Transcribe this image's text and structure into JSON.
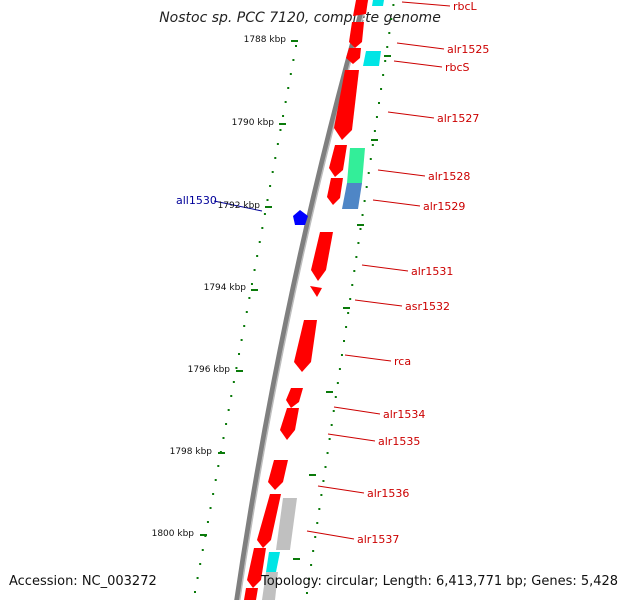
{
  "title": "Nostoc sp. PCC 7120, complete genome",
  "footer": {
    "accession": "Accession: NC_003272",
    "summary": "Topology: circular; Length: 6,413,771 bp; Genes: 5,428"
  },
  "colors": {
    "feature_red": "#ff0000",
    "feature_blue": "#0000ff",
    "feature_cyan": "#00e5e5",
    "feature_green": "#33ee99",
    "feature_steel": "#4f86c6",
    "feature_grey": "#c0c0c0",
    "tick_green": "#0a7a0a",
    "label_red": "#cc0000",
    "label_blue": "#000099",
    "backbone": "#7f7f7f"
  },
  "kbp_ticks": [
    "1788 kbp",
    "1790 kbp",
    "1792 kbp",
    "1794 kbp",
    "1796 kbp",
    "1798 kbp",
    "1800 kbp"
  ],
  "gene_labels_forward": [
    "rbcL",
    "alr1525",
    "rbcS",
    "alr1527",
    "alr1528",
    "alr1529",
    "alr1531",
    "asr1532",
    "rca",
    "alr1534",
    "alr1535",
    "alr1536",
    "alr1537"
  ],
  "gene_labels_reverse": [
    "all1530"
  ]
}
